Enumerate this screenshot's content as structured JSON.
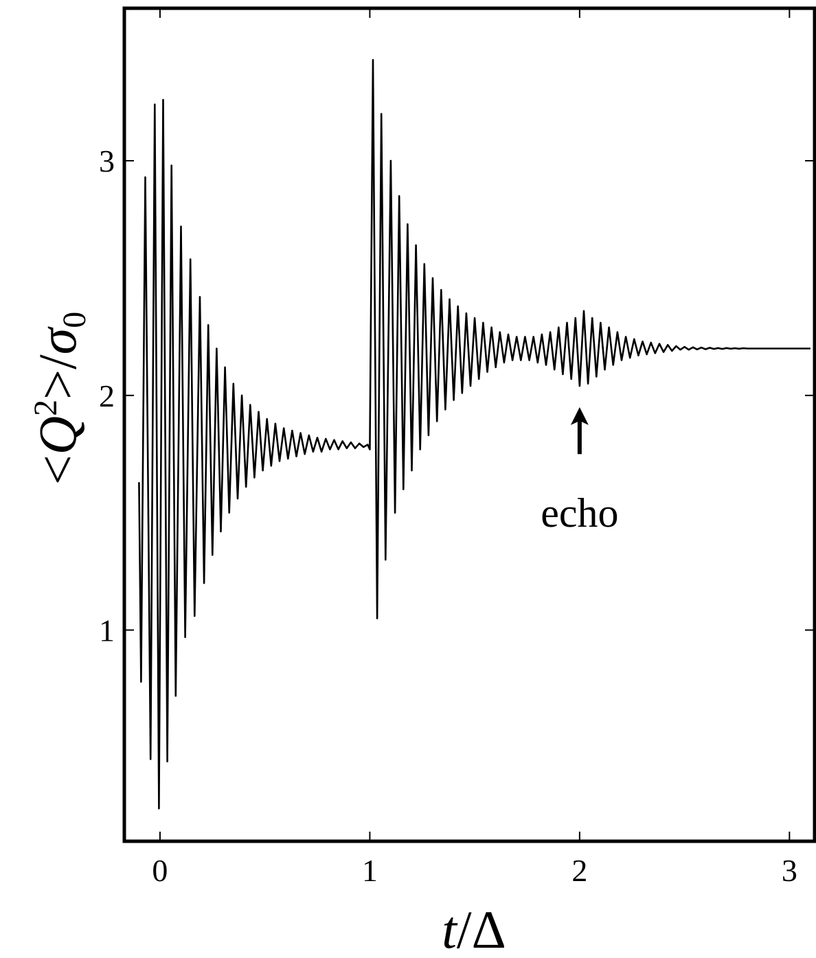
{
  "chart_data": {
    "type": "line",
    "title": "",
    "xlabel": "t/Δ",
    "ylabel": "<Q²>/σ0",
    "ylabel_parts": {
      "open": "<",
      "q": "Q",
      "exp": "2",
      "close": ">/",
      "sigma": "σ",
      "sub": "0"
    },
    "xlabel_parts": {
      "t": "t",
      "rest": "/Δ"
    },
    "xlim": [
      -0.17,
      3.12
    ],
    "ylim": [
      0.1,
      3.65
    ],
    "xticks": [
      0,
      1,
      2,
      3
    ],
    "xtick_labels": [
      "0",
      "1",
      "2",
      "3"
    ],
    "yticks": [
      1,
      2,
      3
    ],
    "ytick_labels": [
      "1",
      "2",
      "3"
    ],
    "grid": false,
    "series": [
      {
        "color": "#000000",
        "points": [
          [
            -0.1,
            1.63
          ],
          [
            -0.09,
            0.78
          ],
          [
            -0.07,
            2.93
          ],
          [
            -0.045,
            0.45
          ],
          [
            -0.025,
            3.24
          ],
          [
            -0.005,
            0.24
          ],
          [
            0.015,
            3.26
          ],
          [
            0.035,
            0.44
          ],
          [
            0.055,
            2.98
          ],
          [
            0.075,
            0.72
          ],
          [
            0.1,
            2.72
          ],
          [
            0.12,
            0.97
          ],
          [
            0.145,
            2.58
          ],
          [
            0.165,
            1.06
          ],
          [
            0.19,
            2.42
          ],
          [
            0.21,
            1.2
          ],
          [
            0.23,
            2.3
          ],
          [
            0.25,
            1.32
          ],
          [
            0.27,
            2.2
          ],
          [
            0.29,
            1.42
          ],
          [
            0.31,
            2.12
          ],
          [
            0.33,
            1.5
          ],
          [
            0.35,
            2.05
          ],
          [
            0.37,
            1.56
          ],
          [
            0.39,
            2.0
          ],
          [
            0.41,
            1.61
          ],
          [
            0.43,
            1.96
          ],
          [
            0.45,
            1.65
          ],
          [
            0.47,
            1.93
          ],
          [
            0.49,
            1.68
          ],
          [
            0.51,
            1.9
          ],
          [
            0.53,
            1.7
          ],
          [
            0.55,
            1.88
          ],
          [
            0.57,
            1.72
          ],
          [
            0.59,
            1.86
          ],
          [
            0.61,
            1.73
          ],
          [
            0.63,
            1.85
          ],
          [
            0.65,
            1.74
          ],
          [
            0.67,
            1.84
          ],
          [
            0.69,
            1.75
          ],
          [
            0.71,
            1.83
          ],
          [
            0.73,
            1.76
          ],
          [
            0.75,
            1.82
          ],
          [
            0.77,
            1.76
          ],
          [
            0.79,
            1.815
          ],
          [
            0.81,
            1.77
          ],
          [
            0.83,
            1.81
          ],
          [
            0.85,
            1.77
          ],
          [
            0.87,
            1.805
          ],
          [
            0.89,
            1.775
          ],
          [
            0.91,
            1.8
          ],
          [
            0.93,
            1.775
          ],
          [
            0.95,
            1.795
          ],
          [
            0.97,
            1.78
          ],
          [
            0.99,
            1.79
          ],
          [
            1.0,
            1.77
          ],
          [
            1.015,
            3.43
          ],
          [
            1.035,
            1.05
          ],
          [
            1.055,
            3.2
          ],
          [
            1.075,
            1.3
          ],
          [
            1.1,
            3.0
          ],
          [
            1.12,
            1.5
          ],
          [
            1.14,
            2.85
          ],
          [
            1.16,
            1.6
          ],
          [
            1.18,
            2.73
          ],
          [
            1.2,
            1.68
          ],
          [
            1.22,
            2.64
          ],
          [
            1.24,
            1.77
          ],
          [
            1.26,
            2.56
          ],
          [
            1.28,
            1.83
          ],
          [
            1.3,
            2.5
          ],
          [
            1.32,
            1.89
          ],
          [
            1.34,
            2.45
          ],
          [
            1.36,
            1.94
          ],
          [
            1.38,
            2.41
          ],
          [
            1.4,
            1.98
          ],
          [
            1.42,
            2.38
          ],
          [
            1.44,
            2.01
          ],
          [
            1.46,
            2.35
          ],
          [
            1.48,
            2.04
          ],
          [
            1.5,
            2.33
          ],
          [
            1.52,
            2.07
          ],
          [
            1.54,
            2.31
          ],
          [
            1.56,
            2.1
          ],
          [
            1.58,
            2.29
          ],
          [
            1.6,
            2.12
          ],
          [
            1.62,
            2.27
          ],
          [
            1.64,
            2.14
          ],
          [
            1.66,
            2.26
          ],
          [
            1.68,
            2.15
          ],
          [
            1.7,
            2.25
          ],
          [
            1.72,
            2.15
          ],
          [
            1.74,
            2.25
          ],
          [
            1.76,
            2.15
          ],
          [
            1.78,
            2.25
          ],
          [
            1.8,
            2.14
          ],
          [
            1.82,
            2.26
          ],
          [
            1.84,
            2.13
          ],
          [
            1.86,
            2.27
          ],
          [
            1.88,
            2.11
          ],
          [
            1.9,
            2.29
          ],
          [
            1.92,
            2.09
          ],
          [
            1.94,
            2.31
          ],
          [
            1.96,
            2.07
          ],
          [
            1.98,
            2.33
          ],
          [
            2.0,
            2.04
          ],
          [
            2.02,
            2.36
          ],
          [
            2.04,
            2.05
          ],
          [
            2.06,
            2.33
          ],
          [
            2.08,
            2.08
          ],
          [
            2.1,
            2.31
          ],
          [
            2.12,
            2.11
          ],
          [
            2.14,
            2.29
          ],
          [
            2.16,
            2.13
          ],
          [
            2.18,
            2.27
          ],
          [
            2.2,
            2.15
          ],
          [
            2.22,
            2.25
          ],
          [
            2.24,
            2.16
          ],
          [
            2.26,
            2.24
          ],
          [
            2.28,
            2.17
          ],
          [
            2.3,
            2.23
          ],
          [
            2.32,
            2.175
          ],
          [
            2.34,
            2.225
          ],
          [
            2.36,
            2.18
          ],
          [
            2.38,
            2.22
          ],
          [
            2.4,
            2.185
          ],
          [
            2.42,
            2.215
          ],
          [
            2.44,
            2.19
          ],
          [
            2.46,
            2.21
          ],
          [
            2.48,
            2.195
          ],
          [
            2.5,
            2.207
          ],
          [
            2.52,
            2.195
          ],
          [
            2.54,
            2.205
          ],
          [
            2.56,
            2.196
          ],
          [
            2.58,
            2.204
          ],
          [
            2.6,
            2.197
          ],
          [
            2.62,
            2.203
          ],
          [
            2.64,
            2.198
          ],
          [
            2.66,
            2.202
          ],
          [
            2.68,
            2.198
          ],
          [
            2.7,
            2.202
          ],
          [
            2.72,
            2.199
          ],
          [
            2.74,
            2.201
          ],
          [
            2.76,
            2.199
          ],
          [
            2.78,
            2.201
          ],
          [
            2.8,
            2.2
          ],
          [
            3.1,
            2.2
          ]
        ]
      }
    ],
    "annotations": [
      {
        "text": "echo",
        "arrow_to": [
          2.0,
          1.95
        ],
        "arrow_from": [
          2.0,
          1.75
        ],
        "text_at": [
          2.0,
          1.44
        ]
      }
    ]
  }
}
